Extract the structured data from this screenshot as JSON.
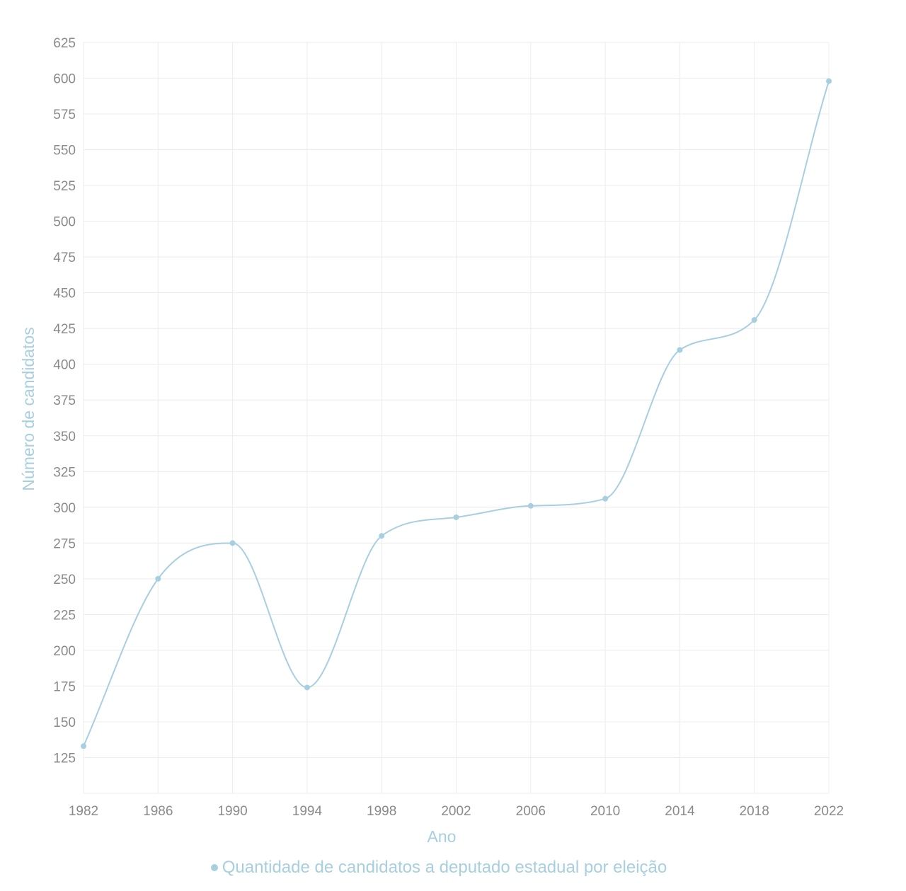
{
  "chart_data": {
    "type": "line",
    "x": [
      "1982",
      "1986",
      "1990",
      "1994",
      "1998",
      "2002",
      "2006",
      "2010",
      "2014",
      "2018",
      "2022"
    ],
    "series": [
      {
        "name": "Quantidade de candidatos a deputado estadual por eleição",
        "values": [
          133,
          250,
          275,
          174,
          280,
          293,
          301,
          306,
          410,
          431,
          598
        ],
        "color": "#a8cfe0"
      }
    ],
    "xlabel": "Ano",
    "ylabel": "Número de candidatos",
    "ylim": [
      100,
      625
    ],
    "yticks": [
      125,
      150,
      175,
      200,
      225,
      250,
      275,
      300,
      325,
      350,
      375,
      400,
      425,
      450,
      475,
      500,
      525,
      550,
      575,
      600,
      625
    ],
    "grid": true,
    "smooth": true,
    "legend": "bottom-center"
  }
}
